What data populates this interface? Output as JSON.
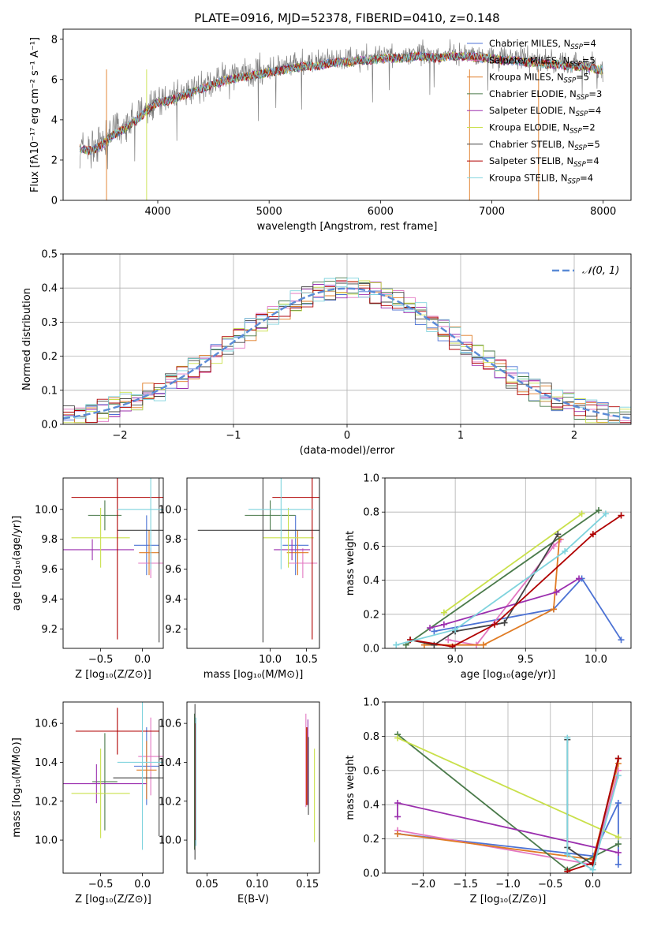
{
  "figure": {
    "title": "PLATE=0916, MJD=52378, FIBERID=0410, z=0.148"
  },
  "chart_data": [
    {
      "id": "spectrum",
      "type": "line",
      "xlabel": "wavelength [Angstrom, rest frame]",
      "ylabel": "Flux [fλ10⁻¹⁷ erg cm⁻² s⁻¹ A⁻¹]",
      "xlim": [
        3150,
        8250
      ],
      "ylim": [
        0,
        8.5
      ],
      "xticks": [
        4000,
        5000,
        6000,
        7000,
        8000
      ],
      "yticks": [
        0,
        2,
        4,
        6,
        8
      ],
      "grid": false,
      "legend_position": "top-right",
      "data_series": {
        "name": "data",
        "color": "#808080",
        "x": [
          3300,
          3400,
          3500,
          3600,
          3700,
          3800,
          3900,
          4000,
          4100,
          4200,
          4300,
          4400,
          4500,
          4600,
          4700,
          4800,
          4900,
          5000,
          5100,
          5200,
          5300,
          5400,
          5500,
          5600,
          5700,
          5800,
          5900,
          6000,
          6100,
          6200,
          6300,
          6400,
          6500,
          6600,
          6700,
          6800,
          6900,
          7000,
          7100,
          7200,
          7300,
          7400,
          7500,
          7600,
          7700,
          7800,
          7900,
          8000
        ],
        "y": [
          2.7,
          2.6,
          2.9,
          3.4,
          3.7,
          4.1,
          4.6,
          5.0,
          5.1,
          5.3,
          5.5,
          5.7,
          5.9,
          6.1,
          6.2,
          6.3,
          6.4,
          6.5,
          6.6,
          6.7,
          6.8,
          6.8,
          6.9,
          7.0,
          7.0,
          7.1,
          7.1,
          7.2,
          7.2,
          7.2,
          7.3,
          7.3,
          7.2,
          7.3,
          7.3,
          7.3,
          7.2,
          7.2,
          7.1,
          7.1,
          7.0,
          7.0,
          6.9,
          6.9,
          6.8,
          6.8,
          6.7,
          6.6
        ]
      },
      "series": [
        {
          "name": "Chabrier MILES, N_SSP=4",
          "color": "#4c72d4"
        },
        {
          "name": "Salpeter MILES, N_SSP=5",
          "color": "#e377c2"
        },
        {
          "name": "Kroupa MILES, N_SSP=5",
          "color": "#e07b24"
        },
        {
          "name": "Chabrier ELODIE, N_SSP=3",
          "color": "#4a7a4a"
        },
        {
          "name": "Salpeter ELODIE, N_SSP=4",
          "color": "#9b2fae"
        },
        {
          "name": "Kroupa ELODIE, N_SSP=2",
          "color": "#c9e04a"
        },
        {
          "name": "Chabrier STELIB, N_SSP=5",
          "color": "#444444"
        },
        {
          "name": "Salpeter STELIB, N_SSP=4",
          "color": "#b00000"
        },
        {
          "name": "Kroupa STELIB, N_SSP=4",
          "color": "#7fd3dd"
        }
      ],
      "legend": [
        {
          "base": "Chabrier MILES, N",
          "sub": "SSP",
          "tail": "=4"
        },
        {
          "base": "Salpeter MILES, N",
          "sub": "SSP",
          "tail": "=5"
        },
        {
          "base": "Kroupa MILES, N",
          "sub": "SSP",
          "tail": "=5"
        },
        {
          "base": "Chabrier ELODIE, N",
          "sub": "SSP",
          "tail": "=3"
        },
        {
          "base": "Salpeter ELODIE, N",
          "sub": "SSP",
          "tail": "=4"
        },
        {
          "base": "Kroupa ELODIE, N",
          "sub": "SSP",
          "tail": "=2"
        },
        {
          "base": "Chabrier STELIB, N",
          "sub": "SSP",
          "tail": "=5"
        },
        {
          "base": "Salpeter STELIB, N",
          "sub": "SSP",
          "tail": "=4"
        },
        {
          "base": "Kroupa STELIB, N",
          "sub": "SSP",
          "tail": "=4"
        }
      ]
    },
    {
      "id": "residuals",
      "type": "line",
      "xlabel": "(data-model)/error",
      "ylabel": "Normed distribution",
      "xlim": [
        -2.5,
        2.5
      ],
      "ylim": [
        0,
        0.5
      ],
      "xticks": [
        -2,
        -1,
        0,
        1,
        2
      ],
      "yticks": [
        0.0,
        0.1,
        0.2,
        0.3,
        0.4,
        0.5
      ],
      "grid": true,
      "legend_position": "top-right",
      "legend_label": "𝒩(0, 1)",
      "reference": {
        "name": "N(0,1)",
        "mean": 0,
        "sigma": 1,
        "color": "#5b8bd6"
      },
      "bin_width": 0.1
    },
    {
      "id": "age-vs-Z",
      "type": "scatter",
      "xlabel": "Z [log₁₀(Z/Z⊙)]",
      "ylabel": "age  [log₁₀(age/yr)]",
      "xlim": [
        -0.95,
        0.25
      ],
      "ylim": [
        9.07,
        10.21
      ],
      "xticks": [
        -0.5,
        0.0
      ],
      "yticks": [
        9.2,
        9.4,
        9.6,
        9.8,
        10.0
      ],
      "points": [
        {
          "x": 0.05,
          "y": 9.76,
          "xerr": 0.15,
          "yerr": 0.2,
          "color": "#4c72d4"
        },
        {
          "x": 0.1,
          "y": 9.64,
          "xerr": 0.15,
          "yerr": 0.1,
          "color": "#e377c2"
        },
        {
          "x": 0.08,
          "y": 9.71,
          "xerr": 0.12,
          "yerr": 0.15,
          "color": "#e07b24"
        },
        {
          "x": -0.45,
          "y": 9.96,
          "xerr": 0.2,
          "yerr": 0.1,
          "color": "#4a7a4a"
        },
        {
          "x": -0.6,
          "y": 9.73,
          "xerr": 0.5,
          "yerr": 0.07,
          "color": "#9b2fae"
        },
        {
          "x": -0.5,
          "y": 9.81,
          "xerr": 0.35,
          "yerr": 0.2,
          "color": "#c9e04a"
        },
        {
          "x": 0.2,
          "y": 9.86,
          "xerr": 0.5,
          "yerr": 0.75,
          "color": "#444444"
        },
        {
          "x": -0.3,
          "y": 10.08,
          "xerr": 0.55,
          "yerr": 0.95,
          "color": "#b00000"
        },
        {
          "x": 0.1,
          "y": 10.0,
          "xerr": 0.4,
          "yerr": 0.4,
          "color": "#7fd3dd"
        }
      ]
    },
    {
      "id": "age-vs-mass",
      "type": "scatter",
      "xlabel": "mass [log₁₀(M/M⊙)]",
      "ylabel": "",
      "xlim": [
        8.85,
        10.68
      ],
      "ylim": [
        9.07,
        10.21
      ],
      "xticks": [
        10.0,
        10.5
      ],
      "yticks": [
        9.2,
        9.4,
        9.6,
        9.8,
        10.0
      ],
      "points": [
        {
          "x": 10.35,
          "y": 9.76,
          "xerr": 0.18,
          "yerr": 0.2,
          "color": "#4c72d4"
        },
        {
          "x": 10.45,
          "y": 9.64,
          "xerr": 0.2,
          "yerr": 0.1,
          "color": "#e377c2"
        },
        {
          "x": 10.38,
          "y": 9.71,
          "xerr": 0.15,
          "yerr": 0.15,
          "color": "#e07b24"
        },
        {
          "x": 10.0,
          "y": 9.96,
          "xerr": 0.35,
          "yerr": 0.1,
          "color": "#4a7a4a"
        },
        {
          "x": 10.3,
          "y": 9.73,
          "xerr": 0.25,
          "yerr": 0.07,
          "color": "#9b2fae"
        },
        {
          "x": 10.25,
          "y": 9.81,
          "xerr": 0.35,
          "yerr": 0.2,
          "color": "#c9e04a"
        },
        {
          "x": 9.9,
          "y": 9.86,
          "xerr": 0.9,
          "yerr": 0.75,
          "color": "#444444"
        },
        {
          "x": 10.58,
          "y": 10.08,
          "xerr": 0.55,
          "yerr": 0.95,
          "color": "#b00000"
        },
        {
          "x": 10.15,
          "y": 10.0,
          "xerr": 0.45,
          "yerr": 0.4,
          "color": "#7fd3dd"
        }
      ]
    },
    {
      "id": "weight-vs-age",
      "type": "line",
      "xlabel": "age  [log₁₀(age/yr)]",
      "ylabel": "mass weight",
      "xlim": [
        8.5,
        10.25
      ],
      "ylim": [
        0,
        1
      ],
      "xticks": [
        9.0,
        9.5,
        10.0
      ],
      "yticks": [
        0.0,
        0.2,
        0.4,
        0.6,
        0.8,
        1.0
      ],
      "grid": true,
      "series": [
        {
          "color": "#4c72d4",
          "x": [
            8.85,
            9.7,
            9.9,
            10.18
          ],
          "y": [
            0.1,
            0.23,
            0.41,
            0.05
          ]
        },
        {
          "color": "#e377c2",
          "x": [
            8.95,
            9.15,
            9.7,
            9.75
          ],
          "y": [
            0.05,
            0.02,
            0.6,
            0.64
          ]
        },
        {
          "color": "#e07b24",
          "x": [
            8.78,
            9.2,
            9.7,
            9.74
          ],
          "y": [
            0.02,
            0.02,
            0.23,
            0.64
          ]
        },
        {
          "color": "#4a7a4a",
          "x": [
            8.65,
            10.02
          ],
          "y": [
            0.02,
            0.81
          ]
        },
        {
          "color": "#9b2fae",
          "x": [
            8.82,
            8.92,
            9.72,
            9.88
          ],
          "y": [
            0.12,
            0.14,
            0.33,
            0.41
          ]
        },
        {
          "color": "#c9e04a",
          "x": [
            8.92,
            9.9
          ],
          "y": [
            0.21,
            0.79
          ]
        },
        {
          "color": "#444444",
          "x": [
            8.68,
            8.85,
            9.0,
            9.35,
            9.73
          ],
          "y": [
            0.05,
            0.02,
            0.1,
            0.15,
            0.67
          ]
        },
        {
          "color": "#b00000",
          "x": [
            8.68,
            8.98,
            9.28,
            9.98,
            10.18
          ],
          "y": [
            0.05,
            0.01,
            0.14,
            0.67,
            0.78
          ]
        },
        {
          "color": "#7fd3dd",
          "x": [
            8.58,
            9.0,
            9.78,
            10.07
          ],
          "y": [
            0.02,
            0.11,
            0.57,
            0.79
          ]
        }
      ]
    },
    {
      "id": "mass-vs-Z",
      "type": "scatter",
      "xlabel": "Z [log₁₀(Z/Z⊙)]",
      "ylabel": "mass [log₁₀(M/M⊙)]",
      "xlim": [
        -0.95,
        0.25
      ],
      "ylim": [
        9.83,
        10.71
      ],
      "xticks": [
        -0.5,
        0.0
      ],
      "yticks": [
        10.0,
        10.2,
        10.4,
        10.6
      ],
      "points": [
        {
          "x": 0.05,
          "y": 10.38,
          "xerr": 0.15,
          "yerr": 0.2,
          "color": "#4c72d4"
        },
        {
          "x": 0.1,
          "y": 10.43,
          "xerr": 0.15,
          "yerr": 0.2,
          "color": "#e377c2"
        },
        {
          "x": 0.05,
          "y": 10.36,
          "xerr": 0.12,
          "yerr": 0.15,
          "color": "#e07b24"
        },
        {
          "x": -0.45,
          "y": 10.3,
          "xerr": 0.15,
          "yerr": 0.25,
          "color": "#4a7a4a"
        },
        {
          "x": -0.55,
          "y": 10.29,
          "xerr": 0.6,
          "yerr": 0.1,
          "color": "#9b2fae"
        },
        {
          "x": -0.5,
          "y": 10.24,
          "xerr": 0.35,
          "yerr": 0.23,
          "color": "#c9e04a"
        },
        {
          "x": 0.2,
          "y": 10.32,
          "xerr": 0.55,
          "yerr": 0.3,
          "color": "#444444"
        },
        {
          "x": -0.3,
          "y": 10.56,
          "xerr": 0.5,
          "yerr": 0.12,
          "color": "#b00000"
        },
        {
          "x": 0.0,
          "y": 10.4,
          "xerr": 0.3,
          "yerr": 0.45,
          "color": "#7fd3dd"
        }
      ]
    },
    {
      "id": "mass-vs-ebv",
      "type": "scatter",
      "xlabel": "E(B-V)",
      "ylabel": "",
      "xlim": [
        0.03,
        0.162
      ],
      "ylim": [
        9.83,
        10.71
      ],
      "xticks": [
        0.05,
        0.1,
        0.15
      ],
      "xtick_labels": [
        "0.05",
        "0.10",
        "0.15"
      ],
      "yticks": [
        10.0,
        10.2,
        10.4,
        10.6
      ],
      "points": [
        {
          "x": 0.0375,
          "y": 10.3,
          "yerr": 0.35,
          "color": "#4a7a4a"
        },
        {
          "x": 0.038,
          "y": 10.3,
          "yerr": 0.4,
          "color": "#444444"
        },
        {
          "x": 0.0385,
          "y": 10.3,
          "yerr": 0.3,
          "color": "#b00000"
        },
        {
          "x": 0.039,
          "y": 10.3,
          "yerr": 0.33,
          "color": "#7fd3dd"
        },
        {
          "x": 0.1485,
          "y": 10.41,
          "yerr": 0.24,
          "color": "#e377c2"
        },
        {
          "x": 0.149,
          "y": 10.38,
          "yerr": 0.2,
          "color": "#e07b24"
        },
        {
          "x": 0.1495,
          "y": 10.38,
          "yerr": 0.2,
          "color": "#b00000"
        },
        {
          "x": 0.1505,
          "y": 10.4,
          "yerr": 0.22,
          "color": "#9b2fae"
        },
        {
          "x": 0.151,
          "y": 10.33,
          "yerr": 0.2,
          "color": "#444444"
        },
        {
          "x": 0.157,
          "y": 10.23,
          "yerr": 0.24,
          "color": "#c9e04a"
        }
      ]
    },
    {
      "id": "weight-vs-Z",
      "type": "line",
      "xlabel": "Z [log₁₀(Z/Z⊙)]",
      "ylabel": "mass weight",
      "xlim": [
        -2.45,
        0.45
      ],
      "ylim": [
        0,
        1
      ],
      "xticks": [
        -2.0,
        -1.5,
        -1.0,
        -0.5,
        0.0
      ],
      "yticks": [
        0.0,
        0.2,
        0.4,
        0.6,
        0.8,
        1.0
      ],
      "grid": true,
      "series": [
        {
          "color": "#4c72d4",
          "x": [
            -2.3,
            0.0,
            0.3,
            0.3
          ],
          "y": [
            0.23,
            0.1,
            0.41,
            0.05
          ]
        },
        {
          "color": "#e377c2",
          "x": [
            -2.3,
            0.0,
            0.3
          ],
          "y": [
            0.25,
            0.05,
            0.6
          ]
        },
        {
          "color": "#e07b24",
          "x": [
            -2.3,
            0.0,
            0.3
          ],
          "y": [
            0.23,
            0.08,
            0.64
          ]
        },
        {
          "color": "#4a7a4a",
          "x": [
            -2.3,
            -0.3,
            0.3
          ],
          "y": [
            0.81,
            0.02,
            0.17
          ]
        },
        {
          "color": "#9b2fae",
          "x": [
            -2.3,
            -2.3,
            0.3
          ],
          "y": [
            0.33,
            0.41,
            0.12
          ]
        },
        {
          "color": "#c9e04a",
          "x": [
            -2.3,
            0.3
          ],
          "y": [
            0.79,
            0.21
          ]
        },
        {
          "color": "#444444",
          "x": [
            -0.3,
            -0.3,
            0.0,
            0.3
          ],
          "y": [
            0.78,
            0.15,
            0.05,
            0.67
          ]
        },
        {
          "color": "#b00000",
          "x": [
            -0.3,
            0.0,
            0.3
          ],
          "y": [
            0.01,
            0.06,
            0.67
          ]
        },
        {
          "color": "#7fd3dd",
          "x": [
            -0.3,
            -0.3,
            0.0,
            0.3
          ],
          "y": [
            0.79,
            0.11,
            0.02,
            0.57
          ]
        }
      ]
    }
  ]
}
